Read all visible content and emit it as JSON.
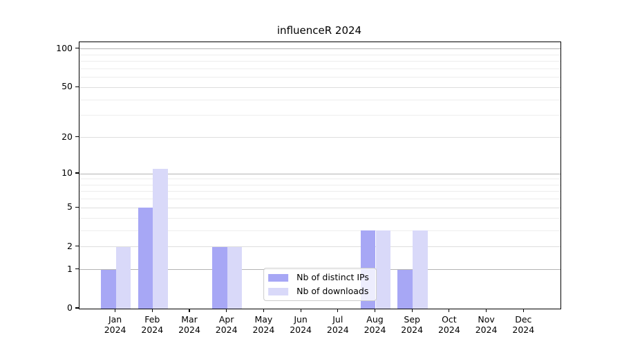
{
  "chart_data": {
    "type": "bar",
    "title": "influenceR 2024",
    "categories": [
      "Jan",
      "Feb",
      "Mar",
      "Apr",
      "May",
      "Jun",
      "Jul",
      "Aug",
      "Sep",
      "Oct",
      "Nov",
      "Dec"
    ],
    "year_label": "2024",
    "series": [
      {
        "name": "Nb of distinct IPs",
        "color": "#a7a7f5",
        "values": [
          1,
          5,
          0,
          2,
          0,
          0,
          0,
          3,
          1,
          0,
          0,
          0
        ]
      },
      {
        "name": "Nb of downloads",
        "color": "#d9d9f9",
        "values": [
          2,
          11,
          0,
          2,
          0,
          0,
          0,
          3,
          3,
          0,
          0,
          0
        ]
      }
    ],
    "xlabel": "",
    "ylabel": "",
    "y_scale": "log1p",
    "ylim": [
      0,
      113
    ],
    "y_ticks": [
      0,
      1,
      2,
      5,
      10,
      20,
      50,
      100
    ],
    "y_major_gridlines": [
      1,
      10,
      100
    ],
    "y_mid_gridlines": [
      2,
      5,
      20,
      50
    ],
    "y_minor_gridlines": [
      3,
      4,
      6,
      7,
      8,
      9,
      30,
      40,
      60,
      70,
      80,
      90
    ],
    "grid": "horizontal",
    "legend_position": "lower center inside plot",
    "colors": {
      "major_grid": "#b3b3b3",
      "mid_grid": "#dedede",
      "minor_grid": "#ededed",
      "spine": "#000000",
      "text": "#000000",
      "background": "#ffffff"
    }
  }
}
